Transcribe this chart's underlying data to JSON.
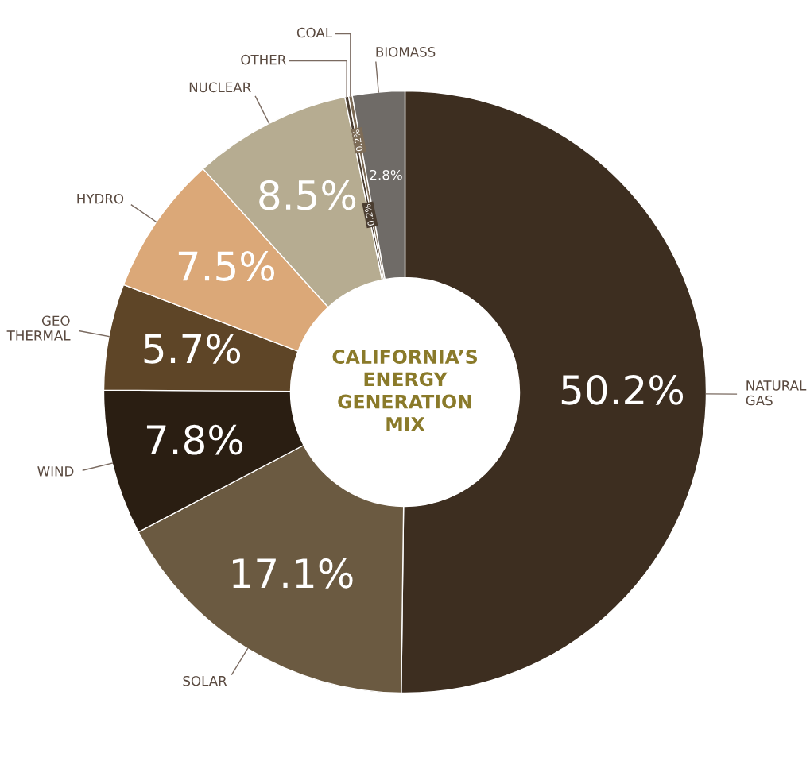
{
  "chart_data": {
    "type": "donut",
    "title": "CALIFORNIA’S\nENERGY\nGENERATION\nMIX",
    "categories": [
      "NATURAL\nGAS",
      "SOLAR",
      "WIND",
      "GEO\nTHERMAL",
      "HYDRO",
      "NUCLEAR",
      "OTHER",
      "COAL",
      "BIOMASS"
    ],
    "values": [
      50.2,
      17.1,
      7.8,
      5.7,
      7.5,
      8.5,
      0.2,
      0.2,
      2.8
    ],
    "value_labels": [
      "50.2%",
      "17.1%",
      "7.8%",
      "5.7%",
      "7.5%",
      "8.5%",
      "0.2%",
      "0.2%",
      "2.8%"
    ],
    "colors": [
      "#3d2e20",
      "#6b5a41",
      "#2a1e12",
      "#5e4527",
      "#dba878",
      "#b6ac91",
      "#4a3d30",
      "#7d6c57",
      "#6f6b67"
    ]
  }
}
